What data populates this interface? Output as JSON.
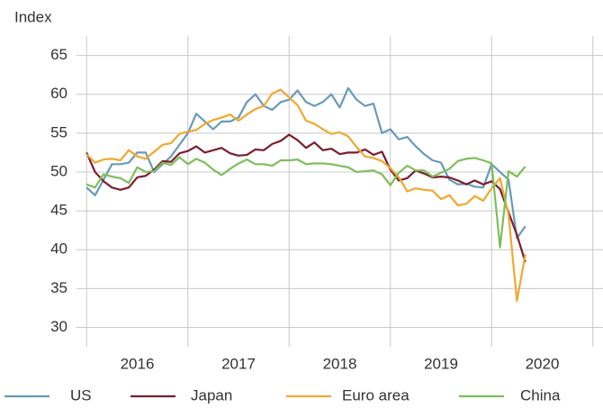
{
  "chart_data": {
    "type": "line",
    "ylabel": "Index",
    "x": [
      2016,
      2016.083,
      2016.167,
      2016.25,
      2016.333,
      2016.417,
      2016.5,
      2016.583,
      2016.667,
      2016.75,
      2016.833,
      2016.917,
      2017,
      2017.083,
      2017.167,
      2017.25,
      2017.333,
      2017.417,
      2017.5,
      2017.583,
      2017.667,
      2017.75,
      2017.833,
      2017.917,
      2018,
      2018.083,
      2018.167,
      2018.25,
      2018.333,
      2018.417,
      2018.5,
      2018.583,
      2018.667,
      2018.75,
      2018.833,
      2018.917,
      2019,
      2019.083,
      2019.167,
      2019.25,
      2019.333,
      2019.417,
      2019.5,
      2019.583,
      2019.667,
      2019.75,
      2019.833,
      2019.917,
      2020,
      2020.083,
      2020.167,
      2020.25,
      2020.333
    ],
    "series": [
      {
        "name": "US",
        "color": "#6a9ab8",
        "values": [
          48,
          47,
          49,
          51,
          51,
          51.2,
          52.5,
          52.5,
          50,
          51,
          52,
          53.5,
          55,
          57.5,
          56.5,
          55.5,
          56.5,
          56.5,
          57,
          59,
          60,
          58.5,
          58,
          59,
          59.3,
          60.5,
          59,
          58.5,
          59,
          60,
          58.3,
          60.8,
          59.3,
          58.5,
          58.8,
          55,
          55.5,
          54.2,
          54.5,
          53.3,
          52.3,
          51.5,
          51.2,
          49,
          48.4,
          48.5,
          48.1,
          48,
          51,
          50,
          49,
          41.5,
          43
        ]
      },
      {
        "name": "Japan",
        "color": "#7b1e2e",
        "values": [
          52.5,
          50,
          48.8,
          48,
          47.7,
          48,
          49.3,
          49.5,
          50.3,
          51.4,
          51.3,
          52.4,
          52.7,
          53.3,
          52.5,
          52.8,
          53.1,
          52.4,
          52.1,
          52.2,
          52.9,
          52.8,
          53.6,
          54,
          54.8,
          54.1,
          53.1,
          53.8,
          52.8,
          53,
          52.3,
          52.5,
          52.5,
          52.9,
          52.2,
          52.6,
          50.3,
          48.9,
          49.2,
          50.2,
          49.8,
          49.3,
          49.4,
          49.3,
          48.9,
          48.4,
          48.9,
          48.4,
          48.8,
          47.8,
          44.8,
          41.9,
          38.4
        ]
      },
      {
        "name": "Euro area",
        "color": "#f0a830",
        "values": [
          52.3,
          51.2,
          51.6,
          51.7,
          51.5,
          52.8,
          52,
          51.7,
          52.6,
          53.5,
          53.7,
          54.9,
          55.2,
          55.4,
          56.2,
          56.7,
          57,
          57.4,
          56.6,
          57.4,
          58.1,
          58.5,
          60.1,
          60.6,
          59.6,
          58.6,
          56.6,
          56.2,
          55.5,
          54.9,
          55.1,
          54.6,
          53.2,
          52,
          51.8,
          51.4,
          50.5,
          49.3,
          47.5,
          47.9,
          47.7,
          47.6,
          46.5,
          47,
          45.7,
          45.9,
          46.9,
          46.3,
          47.9,
          49.2,
          44.5,
          33.4,
          39.4
        ]
      },
      {
        "name": "China",
        "color": "#7dbe5a",
        "values": [
          48.4,
          48,
          49.7,
          49.4,
          49.2,
          48.6,
          50.6,
          50,
          50.1,
          51.2,
          50.9,
          51.9,
          51,
          51.7,
          51.2,
          50.3,
          49.6,
          50.4,
          51.1,
          51.6,
          51,
          51,
          50.8,
          51.5,
          51.5,
          51.6,
          51,
          51.1,
          51.1,
          51,
          50.8,
          50.6,
          50,
          50.1,
          50.2,
          49.7,
          48.3,
          49.9,
          50.8,
          50.2,
          50.2,
          49.4,
          49.9,
          50.4,
          51.4,
          51.7,
          51.8,
          51.5,
          51.1,
          40.3,
          50.1,
          49.4,
          50.7
        ]
      }
    ],
    "xlim": [
      2015.9,
      2021.1
    ],
    "xticks": [
      {
        "value": 2016.5,
        "label": "2016"
      },
      {
        "value": 2017.5,
        "label": "2017"
      },
      {
        "value": 2018.5,
        "label": "2018"
      },
      {
        "value": 2019.5,
        "label": "2019"
      },
      {
        "value": 2020.5,
        "label": "2020"
      }
    ],
    "xgrid": [
      2016,
      2017,
      2018,
      2019,
      2020,
      2021
    ],
    "ylim": [
      27.5,
      67.5
    ],
    "yticks": [
      30,
      35,
      40,
      45,
      50,
      55,
      60,
      65
    ],
    "grid": true,
    "legend": "bottom"
  }
}
